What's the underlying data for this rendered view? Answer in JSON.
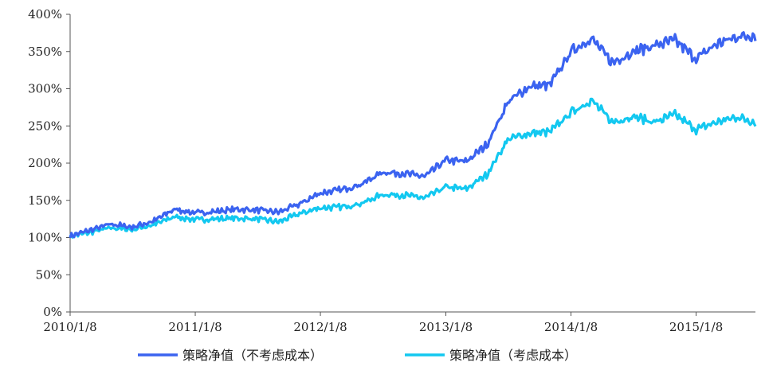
{
  "chart_data": {
    "type": "line",
    "title": "",
    "xlabel": "",
    "ylabel": "",
    "ylim": [
      0,
      400
    ],
    "y_ticks": [
      "0%",
      "50%",
      "100%",
      "150%",
      "200%",
      "250%",
      "300%",
      "350%",
      "400%"
    ],
    "x_ticks": [
      "2010/1/8",
      "2011/1/8",
      "2012/1/8",
      "2013/1/8",
      "2014/1/8",
      "2015/1/8"
    ],
    "grid": false,
    "legend_position": "bottom",
    "x": [
      "2010/1/8",
      "2010/3/8",
      "2010/5/8",
      "2010/7/8",
      "2010/9/8",
      "2010/11/8",
      "2011/1/8",
      "2011/3/8",
      "2011/5/8",
      "2011/7/8",
      "2011/9/8",
      "2011/11/8",
      "2012/1/8",
      "2012/3/8",
      "2012/5/8",
      "2012/7/8",
      "2012/9/8",
      "2012/11/8",
      "2013/1/8",
      "2013/3/8",
      "2013/5/8",
      "2013/7/8",
      "2013/9/8",
      "2013/11/8",
      "2014/1/8",
      "2014/3/8",
      "2014/5/8",
      "2014/7/8",
      "2014/9/8",
      "2014/11/8",
      "2015/1/8",
      "2015/3/8",
      "2015/5/8",
      "2015/6/30"
    ],
    "series": [
      {
        "name": "策略净值（不考虑成本）",
        "color": "#3b63f0",
        "values": [
          102,
          110,
          118,
          114,
          122,
          138,
          133,
          135,
          138,
          137,
          134,
          145,
          160,
          164,
          172,
          188,
          186,
          182,
          204,
          202,
          225,
          282,
          303,
          305,
          350,
          368,
          335,
          350,
          358,
          365,
          340,
          360,
          370,
          372
        ]
      },
      {
        "name": "策略净值（考虑成本）",
        "color": "#13c8f0",
        "values": [
          102,
          107,
          113,
          111,
          117,
          128,
          124,
          125,
          126,
          125,
          121,
          132,
          140,
          141,
          146,
          158,
          157,
          153,
          168,
          165,
          185,
          232,
          240,
          242,
          268,
          285,
          255,
          263,
          255,
          265,
          245,
          255,
          262,
          255
        ]
      }
    ]
  }
}
